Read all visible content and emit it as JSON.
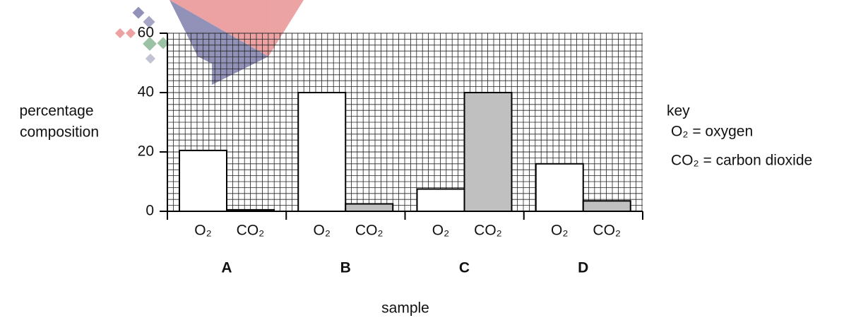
{
  "chart_data": {
    "type": "grouped-bar",
    "ylabel": [
      "percentage",
      "composition"
    ],
    "xlabel": "sample",
    "categories": [
      "A",
      "B",
      "C",
      "D"
    ],
    "series": [
      {
        "name": "O₂",
        "color": "#ffffff",
        "values": [
          20.5,
          40,
          7.5,
          16
        ]
      },
      {
        "name": "CO₂",
        "color": "#c0c0c0",
        "values": [
          0.5,
          2.5,
          40,
          3.5
        ]
      }
    ],
    "ylim": [
      0,
      60
    ],
    "yticks": [
      0,
      20,
      40,
      60
    ],
    "grid": true,
    "legend": {
      "title": "key",
      "entries": [
        "O₂ = oxygen",
        "CO₂ = carbon dioxide"
      ]
    }
  }
}
